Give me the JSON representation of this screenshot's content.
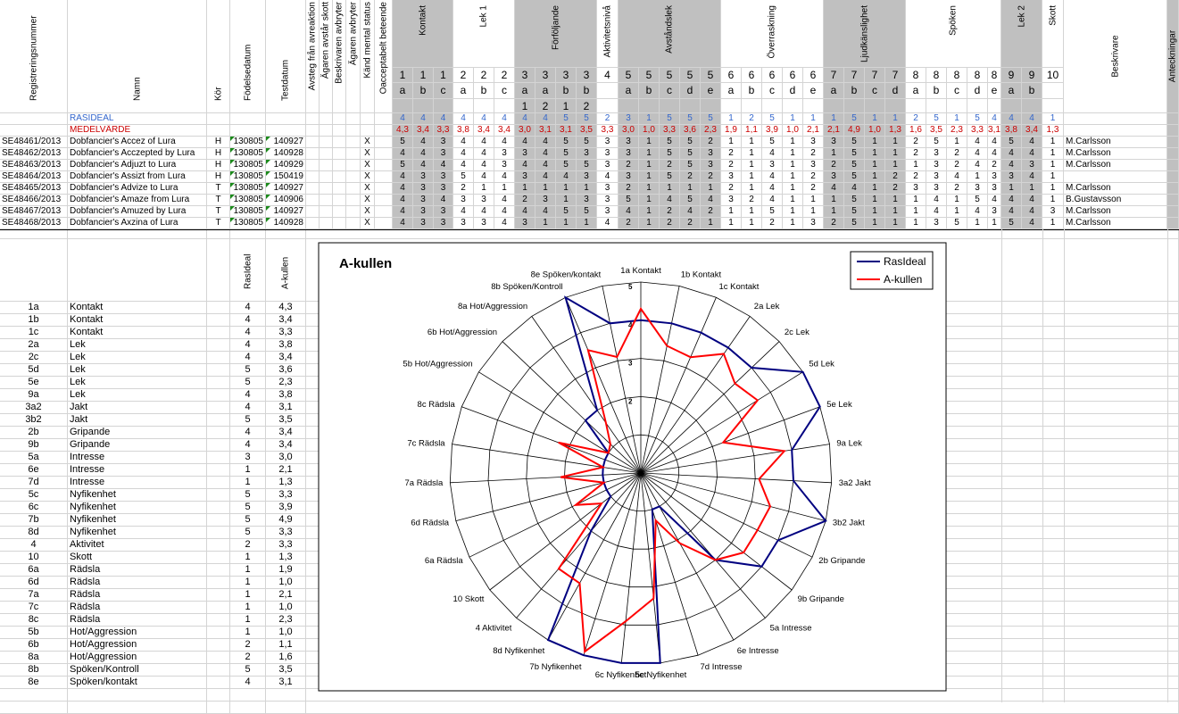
{
  "header": {
    "reg_label": "Registreringsnummer",
    "name_label": "Namn",
    "kor_label": "Kör",
    "birth_label": "Födelsedatum",
    "test_label": "Testdatum",
    "extra_cols": [
      "Avsteg från avreaktion",
      "Ägaren avstår skott",
      "Beskrivaren avbryter",
      "Ägaren avbryter",
      "Känd mental status",
      "Oacceptabelt beteende"
    ],
    "groups": [
      {
        "label": "Kontakt"
      },
      {
        "label": "Lek 1"
      },
      {
        "label": "Förföljande"
      },
      {
        "label": "Aktivitetsnivå"
      },
      {
        "label": "Avståndslek"
      },
      {
        "label": "Överraskning"
      },
      {
        "label": "Ljudkänslighet"
      },
      {
        "label": "Spöken"
      },
      {
        "label": "Lek 2"
      },
      {
        "label": "Skott"
      }
    ],
    "beskrivare_label": "Beskrivare",
    "notes_label": "Anteckningar"
  },
  "moment_cols": [
    {
      "n": "1",
      "sub": "a",
      "sub2": "",
      "grp": 0
    },
    {
      "n": "1",
      "sub": "b",
      "sub2": "",
      "grp": 0
    },
    {
      "n": "1",
      "sub": "c",
      "sub2": "",
      "grp": 0
    },
    {
      "n": "2",
      "sub": "a",
      "sub2": "",
      "grp": 1
    },
    {
      "n": "2",
      "sub": "b",
      "sub2": "",
      "grp": 1
    },
    {
      "n": "2",
      "sub": "c",
      "sub2": "",
      "grp": 1
    },
    {
      "n": "3",
      "sub": "a",
      "sub2": "1",
      "grp": 2
    },
    {
      "n": "3",
      "sub": "a",
      "sub2": "2",
      "grp": 2
    },
    {
      "n": "3",
      "sub": "b",
      "sub2": "1",
      "grp": 2
    },
    {
      "n": "3",
      "sub": "b",
      "sub2": "2",
      "grp": 2
    },
    {
      "n": "4",
      "sub": "",
      "sub2": "",
      "grp": 3
    },
    {
      "n": "5",
      "sub": "a",
      "sub2": "",
      "grp": 4
    },
    {
      "n": "5",
      "sub": "b",
      "sub2": "",
      "grp": 4
    },
    {
      "n": "5",
      "sub": "c",
      "sub2": "",
      "grp": 4
    },
    {
      "n": "5",
      "sub": "d",
      "sub2": "",
      "grp": 4
    },
    {
      "n": "5",
      "sub": "e",
      "sub2": "",
      "grp": 4
    },
    {
      "n": "6",
      "sub": "a",
      "sub2": "",
      "grp": 5
    },
    {
      "n": "6",
      "sub": "b",
      "sub2": "",
      "grp": 5
    },
    {
      "n": "6",
      "sub": "c",
      "sub2": "",
      "grp": 5
    },
    {
      "n": "6",
      "sub": "d",
      "sub2": "",
      "grp": 5
    },
    {
      "n": "6",
      "sub": "e",
      "sub2": "",
      "grp": 5
    },
    {
      "n": "7",
      "sub": "a",
      "sub2": "",
      "grp": 6
    },
    {
      "n": "7",
      "sub": "b",
      "sub2": "",
      "grp": 6
    },
    {
      "n": "7",
      "sub": "c",
      "sub2": "",
      "grp": 6
    },
    {
      "n": "7",
      "sub": "d",
      "sub2": "",
      "grp": 6
    },
    {
      "n": "8",
      "sub": "a",
      "sub2": "",
      "grp": 7
    },
    {
      "n": "8",
      "sub": "b",
      "sub2": "",
      "grp": 7
    },
    {
      "n": "8",
      "sub": "c",
      "sub2": "",
      "grp": 7
    },
    {
      "n": "8",
      "sub": "d",
      "sub2": "",
      "grp": 7
    },
    {
      "n": "8",
      "sub": "e",
      "sub2": "",
      "grp": 7
    },
    {
      "n": "9",
      "sub": "a",
      "sub2": "",
      "grp": 8
    },
    {
      "n": "9",
      "sub": "b",
      "sub2": "",
      "grp": 8
    },
    {
      "n": "10",
      "sub": "",
      "sub2": "",
      "grp": 9
    }
  ],
  "rasideal_label": "RASIDEAL",
  "rasideal_values": [
    "4",
    "4",
    "4",
    "4",
    "4",
    "4",
    "4",
    "4",
    "5",
    "5",
    "2",
    "3",
    "1",
    "5",
    "5",
    "5",
    "1",
    "2",
    "5",
    "1",
    "1",
    "1",
    "5",
    "1",
    "1",
    "2",
    "5",
    "1",
    "5",
    "4",
    "4",
    "4",
    "1"
  ],
  "medel_label": "MEDELVÄRDE",
  "medel_values": [
    "4,3",
    "3,4",
    "3,3",
    "3,8",
    "3,4",
    "3,4",
    "3,0",
    "3,1",
    "3,1",
    "3,5",
    "3,3",
    "3,0",
    "1,0",
    "3,3",
    "3,6",
    "2,3",
    "1,9",
    "1,1",
    "3,9",
    "1,0",
    "2,1",
    "2,1",
    "4,9",
    "1,0",
    "1,3",
    "1,6",
    "3,5",
    "2,3",
    "3,3",
    "3,1",
    "3,8",
    "3,4",
    "1,3"
  ],
  "dogs": [
    {
      "reg": "SE48461/2013",
      "name": "Dobfancier's Accez of Lura",
      "kor": "H",
      "birth": "130805",
      "test": "140927",
      "x": "X",
      "scores": [
        "5",
        "4",
        "3",
        "4",
        "4",
        "4",
        "4",
        "4",
        "5",
        "5",
        "3",
        "3",
        "1",
        "5",
        "5",
        "2",
        "1",
        "1",
        "5",
        "1",
        "3",
        "3",
        "5",
        "1",
        "1",
        "2",
        "5",
        "1",
        "4",
        "4",
        "5",
        "4",
        "1"
      ],
      "besk": "M.Carlsson"
    },
    {
      "reg": "SE48462/2013",
      "name": "Dobfancier's Acczepted by Lura",
      "kor": "H",
      "birth": "130805",
      "test": "140928",
      "x": "X",
      "scores": [
        "4",
        "4",
        "3",
        "4",
        "4",
        "3",
        "3",
        "4",
        "5",
        "3",
        "3",
        "3",
        "1",
        "5",
        "5",
        "3",
        "2",
        "1",
        "4",
        "1",
        "2",
        "1",
        "5",
        "1",
        "1",
        "2",
        "3",
        "2",
        "4",
        "4",
        "4",
        "4",
        "1"
      ],
      "besk": "M.Carlsson"
    },
    {
      "reg": "SE48463/2013",
      "name": "Dobfancier's Adjuzt to Lura",
      "kor": "H",
      "birth": "130805",
      "test": "140929",
      "x": "X",
      "scores": [
        "5",
        "4",
        "4",
        "4",
        "4",
        "3",
        "4",
        "4",
        "5",
        "5",
        "3",
        "2",
        "1",
        "2",
        "5",
        "3",
        "2",
        "1",
        "3",
        "1",
        "3",
        "2",
        "5",
        "1",
        "1",
        "1",
        "3",
        "2",
        "4",
        "2",
        "4",
        "3",
        "1"
      ],
      "besk": "M.Carlsson"
    },
    {
      "reg": "SE48464/2013",
      "name": "Dobfancier's Assizt from Lura",
      "kor": "H",
      "birth": "130805",
      "test": "150419",
      "x": "X",
      "scores": [
        "4",
        "3",
        "3",
        "5",
        "4",
        "4",
        "3",
        "4",
        "4",
        "3",
        "4",
        "3",
        "1",
        "5",
        "2",
        "2",
        "3",
        "1",
        "4",
        "1",
        "2",
        "3",
        "5",
        "1",
        "2",
        "2",
        "3",
        "4",
        "1",
        "3",
        "3",
        "4",
        "1"
      ],
      "besk": ""
    },
    {
      "reg": "SE48465/2013",
      "name": "Dobfancier's Advize to Lura",
      "kor": "T",
      "birth": "130805",
      "test": "140927",
      "x": "X",
      "scores": [
        "4",
        "3",
        "3",
        "2",
        "1",
        "1",
        "1",
        "1",
        "1",
        "1",
        "3",
        "2",
        "1",
        "1",
        "1",
        "1",
        "2",
        "1",
        "4",
        "1",
        "2",
        "4",
        "4",
        "1",
        "2",
        "3",
        "3",
        "2",
        "3",
        "3",
        "1",
        "1",
        "1"
      ],
      "besk": "M.Carlsson"
    },
    {
      "reg": "SE48466/2013",
      "name": "Dobfancier's Amaze from Lura",
      "kor": "T",
      "birth": "130805",
      "test": "140906",
      "x": "X",
      "scores": [
        "4",
        "3",
        "4",
        "3",
        "3",
        "4",
        "2",
        "3",
        "1",
        "3",
        "3",
        "5",
        "1",
        "4",
        "5",
        "4",
        "3",
        "2",
        "4",
        "1",
        "1",
        "1",
        "5",
        "1",
        "1",
        "1",
        "4",
        "1",
        "5",
        "4",
        "4",
        "4",
        "1"
      ],
      "besk": "B.Gustavsson"
    },
    {
      "reg": "SE48467/2013",
      "name": "Dobfancier's Amuzed by Lura",
      "kor": "T",
      "birth": "130805",
      "test": "140927",
      "x": "X",
      "scores": [
        "4",
        "3",
        "3",
        "4",
        "4",
        "4",
        "4",
        "4",
        "5",
        "5",
        "3",
        "4",
        "1",
        "2",
        "4",
        "2",
        "1",
        "1",
        "5",
        "1",
        "1",
        "1",
        "5",
        "1",
        "1",
        "1",
        "4",
        "1",
        "4",
        "3",
        "4",
        "4",
        "3"
      ],
      "besk": "M.Carlsson"
    },
    {
      "reg": "SE48468/2013",
      "name": "Dobfancier's Axzina of Lura",
      "kor": "T",
      "birth": "130805",
      "test": "140928",
      "x": "X",
      "scores": [
        "4",
        "3",
        "3",
        "3",
        "3",
        "4",
        "3",
        "1",
        "1",
        "1",
        "4",
        "2",
        "1",
        "2",
        "2",
        "1",
        "1",
        "1",
        "2",
        "1",
        "3",
        "2",
        "5",
        "1",
        "1",
        "1",
        "3",
        "5",
        "1",
        "1",
        "5",
        "4",
        "1"
      ],
      "besk": "M.Carlsson"
    }
  ],
  "summary": {
    "col_rasideal": "RasIdeal",
    "col_akullen": "A-kullen",
    "rows": [
      {
        "code": "1a",
        "label": "Kontakt",
        "ideal": "4",
        "akull": "4,3"
      },
      {
        "code": "1b",
        "label": "Kontakt",
        "ideal": "4",
        "akull": "3,4"
      },
      {
        "code": "1c",
        "label": "Kontakt",
        "ideal": "4",
        "akull": "3,3"
      },
      {
        "code": "2a",
        "label": "Lek",
        "ideal": "4",
        "akull": "3,8"
      },
      {
        "code": "2c",
        "label": "Lek",
        "ideal": "4",
        "akull": "3,4"
      },
      {
        "code": "5d",
        "label": "Lek",
        "ideal": "5",
        "akull": "3,6"
      },
      {
        "code": "5e",
        "label": "Lek",
        "ideal": "5",
        "akull": "2,3"
      },
      {
        "code": "9a",
        "label": "Lek",
        "ideal": "4",
        "akull": "3,8"
      },
      {
        "code": "3a2",
        "label": "Jakt",
        "ideal": "4",
        "akull": "3,1"
      },
      {
        "code": "3b2",
        "label": "Jakt",
        "ideal": "5",
        "akull": "3,5"
      },
      {
        "code": "2b",
        "label": "Gripande",
        "ideal": "4",
        "akull": "3,4"
      },
      {
        "code": "9b",
        "label": "Gripande",
        "ideal": "4",
        "akull": "3,4"
      },
      {
        "code": "5a",
        "label": "Intresse",
        "ideal": "3",
        "akull": "3,0"
      },
      {
        "code": "6e",
        "label": "Intresse",
        "ideal": "1",
        "akull": "2,1"
      },
      {
        "code": "7d",
        "label": "Intresse",
        "ideal": "1",
        "akull": "1,3"
      },
      {
        "code": "5c",
        "label": "Nyfikenhet",
        "ideal": "5",
        "akull": "3,3"
      },
      {
        "code": "6c",
        "label": "Nyfikenhet",
        "ideal": "5",
        "akull": "3,9"
      },
      {
        "code": "7b",
        "label": "Nyfikenhet",
        "ideal": "5",
        "akull": "4,9"
      },
      {
        "code": "8d",
        "label": "Nyfikenhet",
        "ideal": "5",
        "akull": "3,3"
      },
      {
        "code": "4",
        "label": "Aktivitet",
        "ideal": "2",
        "akull": "3,3"
      },
      {
        "code": "10",
        "label": "Skott",
        "ideal": "1",
        "akull": "1,3"
      },
      {
        "code": "6a",
        "label": "Rädsla",
        "ideal": "1",
        "akull": "1,9"
      },
      {
        "code": "6d",
        "label": "Rädsla",
        "ideal": "1",
        "akull": "1,0"
      },
      {
        "code": "7a",
        "label": "Rädsla",
        "ideal": "1",
        "akull": "2,1"
      },
      {
        "code": "7c",
        "label": "Rädsla",
        "ideal": "1",
        "akull": "1,0"
      },
      {
        "code": "8c",
        "label": "Rädsla",
        "ideal": "1",
        "akull": "2,3"
      },
      {
        "code": "5b",
        "label": "Hot/Aggression",
        "ideal": "1",
        "akull": "1,0"
      },
      {
        "code": "6b",
        "label": "Hot/Aggression",
        "ideal": "2",
        "akull": "1,1"
      },
      {
        "code": "8a",
        "label": "Hot/Aggression",
        "ideal": "2",
        "akull": "1,6"
      },
      {
        "code": "8b",
        "label": "Spöken/Kontroll",
        "ideal": "5",
        "akull": "3,5"
      },
      {
        "code": "8e",
        "label": "Spöken/kontakt",
        "ideal": "4",
        "akull": "3,1"
      }
    ]
  },
  "chart_data": {
    "type": "radar",
    "title": "A-kullen",
    "rmax": 5,
    "ring_labels": [
      "1",
      "2",
      "3",
      "4",
      "5"
    ],
    "axes": [
      "1a Kontakt",
      "1b Kontakt",
      "1c Kontakt",
      "2a Lek",
      "2c Lek",
      "5d Lek",
      "5e Lek",
      "9a Lek",
      "3a2 Jakt",
      "3b2 Jakt",
      "2b Gripande",
      "9b Gripande",
      "5a Intresse",
      "6e Intresse",
      "7d Intresse",
      "5c Nyfikenhet",
      "6c Nyfikenhet",
      "7b Nyfikenhet",
      "8d Nyfikenhet",
      "4 Aktivitet",
      "10 Skott",
      "6a Rädsla",
      "6d Rädsla",
      "7a Rädsla",
      "7c Rädsla",
      "8c Rädsla",
      "5b Hot/Aggression",
      "6b Hot/Aggression",
      "8a Hot/Aggression",
      "8b Spöken/Kontroll",
      "8e Spöken/kontakt"
    ],
    "series": [
      {
        "name": "RasIdeal",
        "color": "#000080",
        "values": [
          4,
          4,
          4,
          4,
          4,
          5,
          5,
          4,
          4,
          5,
          4,
          4,
          3,
          1,
          1,
          5,
          5,
          5,
          5,
          2,
          1,
          1,
          1,
          1,
          1,
          1,
          1,
          2,
          2,
          5,
          4
        ]
      },
      {
        "name": "A-kullen",
        "color": "#ff0000",
        "values": [
          4.3,
          3.4,
          3.3,
          3.8,
          3.4,
          3.6,
          2.3,
          3.8,
          3.1,
          3.5,
          3.4,
          3.4,
          3.0,
          2.1,
          1.3,
          3.3,
          3.9,
          4.9,
          3.3,
          3.3,
          1.3,
          1.9,
          1.0,
          2.1,
          1.0,
          2.3,
          1.0,
          1.1,
          1.6,
          3.5,
          3.1
        ]
      }
    ],
    "legend": "top-right"
  },
  "colors": {
    "rasideal": "#3366cc",
    "medel": "#cc0000",
    "header_gray": "#c0c0c0",
    "grid": "#d4d4d4"
  }
}
